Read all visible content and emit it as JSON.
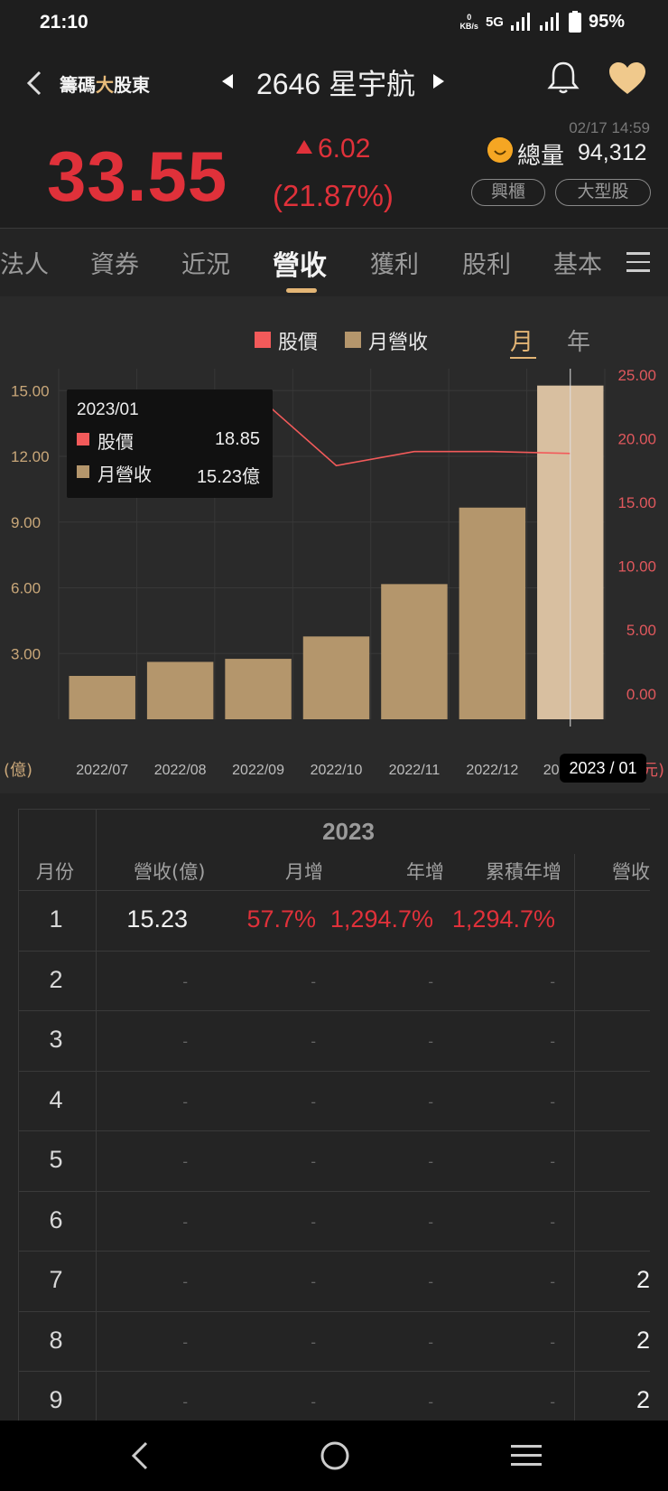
{
  "status_bar": {
    "time": "21:10",
    "kbs_value": "0",
    "kbs_unit": "KB/s",
    "network": "5G",
    "battery": "95%"
  },
  "header": {
    "brand_prefix": "籌碼",
    "brand_bold": "大",
    "brand_suffix": "股東",
    "stock_title": "2646 星宇航",
    "datetime": "02/17 14:59",
    "price": "33.55",
    "change": "6.02",
    "change_pct": "(21.87%)",
    "volume_label": "總量",
    "volume": "94,312",
    "tags": [
      "興櫃",
      "大型股"
    ],
    "accent_red": "#e0313a",
    "accent_gold": "#e3b575"
  },
  "tabs": [
    "法人",
    "資券",
    "近況",
    "營收",
    "獲利",
    "股利",
    "基本"
  ],
  "active_tab": "營收",
  "chart_controls": {
    "legend": [
      {
        "label": "股價",
        "color": "#f25a5a"
      },
      {
        "label": "月營收",
        "color": "#b4966c"
      }
    ],
    "period_options": [
      "月",
      "年"
    ],
    "active_period": "月"
  },
  "chart_data": {
    "type": "bar",
    "categories": [
      "2022/07",
      "2022/08",
      "2022/09",
      "2022/10",
      "2022/11",
      "2022/12",
      "2023/01"
    ],
    "series": [
      {
        "name": "月營收",
        "type": "bar",
        "axis": "left",
        "values": [
          1.98,
          2.62,
          2.76,
          3.78,
          6.17,
          9.66,
          15.23
        ]
      },
      {
        "name": "股價",
        "type": "line",
        "axis": "right",
        "values": [
          null,
          null,
          23.3,
          17.9,
          19.0,
          19.0,
          18.85
        ]
      }
    ],
    "left_axis": {
      "unit": "(億)",
      "ticks": [
        "3.00",
        "6.00",
        "9.00",
        "12.00",
        "15.00"
      ],
      "range": [
        0,
        16
      ]
    },
    "right_axis": {
      "unit": "(元)",
      "ticks": [
        "0.00",
        "5.00",
        "10.00",
        "15.00",
        "20.00",
        "25.00"
      ],
      "range": [
        -2,
        25.5
      ]
    },
    "x_tick_labels": [
      "2022/07",
      "2022/08",
      "2022/09",
      "2022/10",
      "2022/11",
      "2022/12",
      "20"
    ],
    "highlighted_index": 6,
    "grid": true
  },
  "tooltip": {
    "date": "2023/01",
    "price_label": "股價",
    "price_value": "18.85",
    "revenue_label": "月營收",
    "revenue_value": "15.23億"
  },
  "cursor_label": "2023 / 01",
  "table": {
    "year": "2023",
    "headers": [
      "月份",
      "營收(億)",
      "月增",
      "年增",
      "累積年增",
      "營收"
    ],
    "rows": [
      {
        "month": "1",
        "revenue": "15.23",
        "mom": "57.7%",
        "yoy": "1,294.7%",
        "cum_yoy": "1,294.7%",
        "extra": ""
      },
      {
        "month": "2",
        "revenue": "-",
        "mom": "-",
        "yoy": "-",
        "cum_yoy": "-",
        "extra": ""
      },
      {
        "month": "3",
        "revenue": "-",
        "mom": "-",
        "yoy": "-",
        "cum_yoy": "-",
        "extra": ""
      },
      {
        "month": "4",
        "revenue": "-",
        "mom": "-",
        "yoy": "-",
        "cum_yoy": "-",
        "extra": ""
      },
      {
        "month": "5",
        "revenue": "-",
        "mom": "-",
        "yoy": "-",
        "cum_yoy": "-",
        "extra": ""
      },
      {
        "month": "6",
        "revenue": "-",
        "mom": "-",
        "yoy": "-",
        "cum_yoy": "-",
        "extra": ""
      },
      {
        "month": "7",
        "revenue": "-",
        "mom": "-",
        "yoy": "-",
        "cum_yoy": "-",
        "extra": "2"
      },
      {
        "month": "8",
        "revenue": "-",
        "mom": "-",
        "yoy": "-",
        "cum_yoy": "-",
        "extra": "2"
      },
      {
        "month": "9",
        "revenue": "-",
        "mom": "-",
        "yoy": "-",
        "cum_yoy": "-",
        "extra": "2"
      }
    ]
  }
}
